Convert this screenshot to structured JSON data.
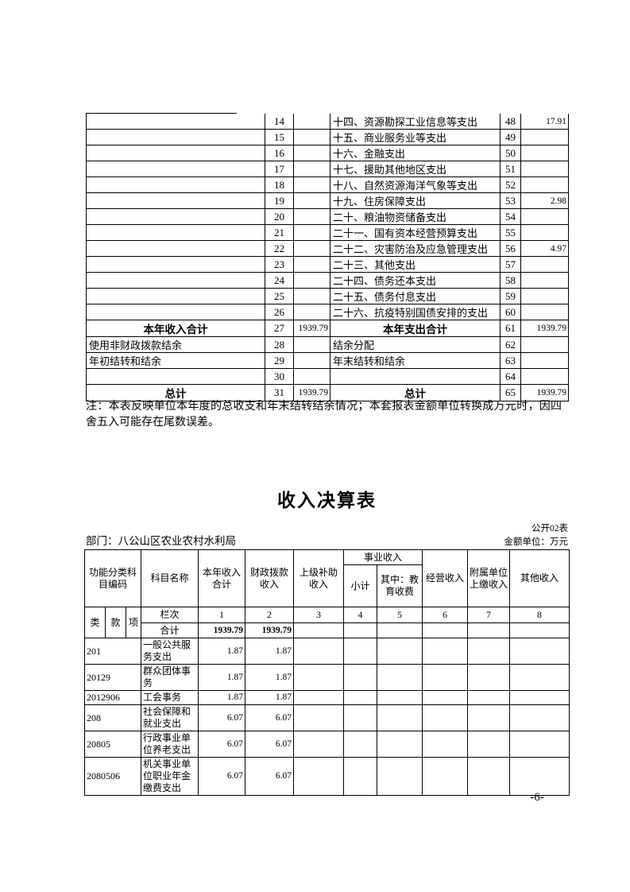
{
  "page": {
    "number": "-6-"
  },
  "summary_table": {
    "note": "注：本表反映单位本年度的总收支和年末结转结余情况；本套报表金额单位转换成万元时，因四舍五入可能存在尾数误差。",
    "rows": [
      {
        "li": "",
        "ln": "14",
        "la": "",
        "ri": "十四、资源勘探工业信息等支出",
        "rn": "48",
        "ra": "17.91",
        "strong": false
      },
      {
        "li": "",
        "ln": "15",
        "la": "",
        "ri": "十五、商业服务业等支出",
        "rn": "49",
        "ra": "",
        "strong": false
      },
      {
        "li": "",
        "ln": "16",
        "la": "",
        "ri": "十六、金融支出",
        "rn": "50",
        "ra": "",
        "strong": false
      },
      {
        "li": "",
        "ln": "17",
        "la": "",
        "ri": "十七、援助其他地区支出",
        "rn": "51",
        "ra": "",
        "strong": false
      },
      {
        "li": "",
        "ln": "18",
        "la": "",
        "ri": "十八、自然资源海洋气象等支出",
        "rn": "52",
        "ra": "",
        "strong": false
      },
      {
        "li": "",
        "ln": "19",
        "la": "",
        "ri": "十九、住房保障支出",
        "rn": "53",
        "ra": "2.98",
        "strong": false
      },
      {
        "li": "",
        "ln": "20",
        "la": "",
        "ri": "二十、粮油物资储备支出",
        "rn": "54",
        "ra": "",
        "strong": false
      },
      {
        "li": "",
        "ln": "21",
        "la": "",
        "ri": "二十一、国有资本经营预算支出",
        "rn": "55",
        "ra": "",
        "strong": false
      },
      {
        "li": "",
        "ln": "22",
        "la": "",
        "ri": "二十二、灾害防治及应急管理支出",
        "rn": "56",
        "ra": "4.97",
        "strong": false
      },
      {
        "li": "",
        "ln": "23",
        "la": "",
        "ri": "二十三、其他支出",
        "rn": "57",
        "ra": "",
        "strong": false
      },
      {
        "li": "",
        "ln": "24",
        "la": "",
        "ri": "二十四、债务还本支出",
        "rn": "58",
        "ra": "",
        "strong": false
      },
      {
        "li": "",
        "ln": "25",
        "la": "",
        "ri": "二十五、债务付息支出",
        "rn": "59",
        "ra": "",
        "strong": false
      },
      {
        "li": "",
        "ln": "26",
        "la": "",
        "ri": "二十六、抗疫特别国债安排的支出",
        "rn": "60",
        "ra": "",
        "strong": false
      },
      {
        "li": "本年收入合计",
        "ln": "27",
        "la": "1939.79",
        "ri": "本年支出合计",
        "rn": "61",
        "ra": "1939.79",
        "strong": true
      },
      {
        "li": "使用非财政拨款结余",
        "ln": "28",
        "la": "",
        "ri": "结余分配",
        "rn": "62",
        "ra": "",
        "strong": false
      },
      {
        "li": "年初结转和结余",
        "ln": "29",
        "la": "",
        "ri": "年末结转和结余",
        "rn": "63",
        "ra": "",
        "strong": false
      },
      {
        "li": "",
        "ln": "30",
        "la": "",
        "ri": "",
        "rn": "64",
        "ra": "",
        "strong": false
      },
      {
        "li": "总计",
        "ln": "31",
        "la": "1939.79",
        "ri": "总计",
        "rn": "65",
        "ra": "1939.79",
        "strong": true
      }
    ]
  },
  "income_table": {
    "title": "收入决算表",
    "table_code": "公开02表",
    "department": "部门：八公山区农业农村水利局",
    "unit_note": "金额单位：万元",
    "headers": {
      "func_code": "功能分类科目编码",
      "subject_name": "科目名称",
      "year_total": "本年收入合计",
      "fiscal_appropriation": "财政拨款收入",
      "superior_subsidy": "上级补助收入",
      "business_income": "事业收入",
      "business_subtotal": "小计",
      "business_edu_fee": "其中：教育收费",
      "operating_income": "经营收入",
      "affiliated_units": "附属单位上缴收入",
      "other_income": "其他收入",
      "class": "类",
      "section": "款",
      "item": "项",
      "col_label": "栏次",
      "col_numbers": [
        "1",
        "2",
        "3",
        "4",
        "5",
        "6",
        "7",
        "8"
      ],
      "total_label": "合计"
    },
    "total_row": [
      "1939.79",
      "1939.79",
      "",
      "",
      "",
      "",
      "",
      ""
    ],
    "rows": [
      {
        "code": "201",
        "name": "一般公共服务支出",
        "values": [
          "1.87",
          "1.87",
          "",
          "",
          "",
          "",
          "",
          ""
        ]
      },
      {
        "code": "20129",
        "name": "群众团体事务",
        "values": [
          "1.87",
          "1.87",
          "",
          "",
          "",
          "",
          "",
          ""
        ]
      },
      {
        "code": "2012906",
        "name": "工会事务",
        "values": [
          "1.87",
          "1.87",
          "",
          "",
          "",
          "",
          "",
          ""
        ]
      },
      {
        "code": "208",
        "name": "社会保障和就业支出",
        "values": [
          "6.07",
          "6.07",
          "",
          "",
          "",
          "",
          "",
          ""
        ]
      },
      {
        "code": "20805",
        "name": "行政事业单位养老支出",
        "values": [
          "6.07",
          "6.07",
          "",
          "",
          "",
          "",
          "",
          ""
        ]
      },
      {
        "code": "2080506",
        "name": "机关事业单位职业年金缴费支出",
        "values": [
          "6.07",
          "6.07",
          "",
          "",
          "",
          "",
          "",
          ""
        ]
      }
    ]
  }
}
